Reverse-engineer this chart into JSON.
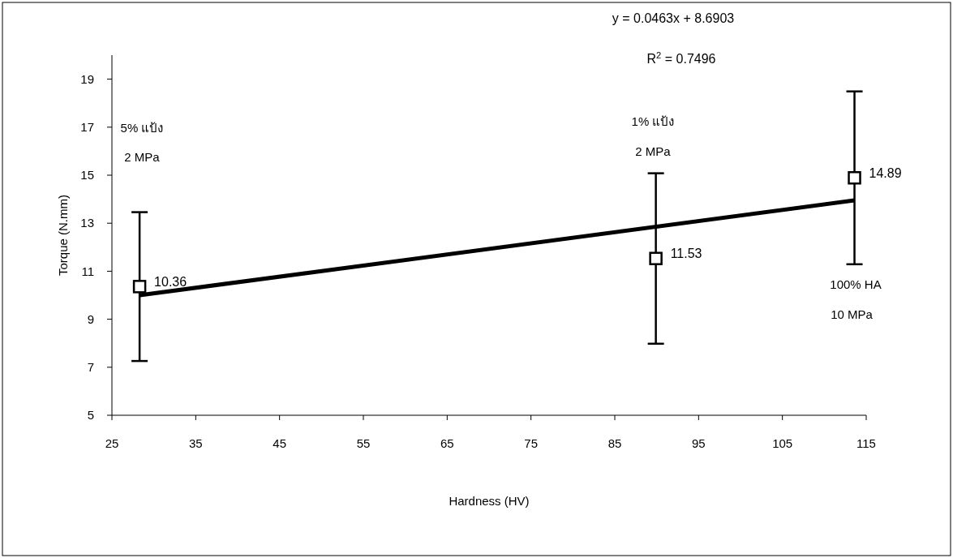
{
  "chart_data": {
    "type": "scatter",
    "xlabel": "Hardness  (HV)",
    "ylabel": "Torque (N.mm)",
    "x": [
      28.3,
      89.9,
      113.6
    ],
    "series": [
      {
        "color": "#000000",
        "values": [
          10.36,
          11.53,
          14.89
        ],
        "value_labels": [
          "10.36",
          "11.53",
          "14.89"
        ],
        "errors": [
          3.1,
          3.55,
          3.6
        ],
        "marker": "square"
      },
      {
        "type": "line",
        "color": "#000000",
        "x": [
          28.3,
          113.6
        ],
        "values": [
          10.0,
          13.95
        ],
        "line_style": "solid",
        "marker": "none"
      }
    ],
    "xlim": [
      25,
      115
    ],
    "xticks": [
      25,
      35,
      45,
      55,
      65,
      75,
      85,
      95,
      105,
      115
    ],
    "ylim": [
      5,
      20
    ],
    "yticks": [
      5,
      7,
      9,
      11,
      13,
      15,
      17,
      19
    ],
    "grid": false,
    "annotations": [
      "y = 0.0463x + 8.6903",
      "R$^{2}$ = 0.7496",
      "5% แป้ง",
      "2 MPa",
      "1% แป้ง",
      "2 MPa",
      "100% HA",
      "10 MPa"
    ]
  }
}
